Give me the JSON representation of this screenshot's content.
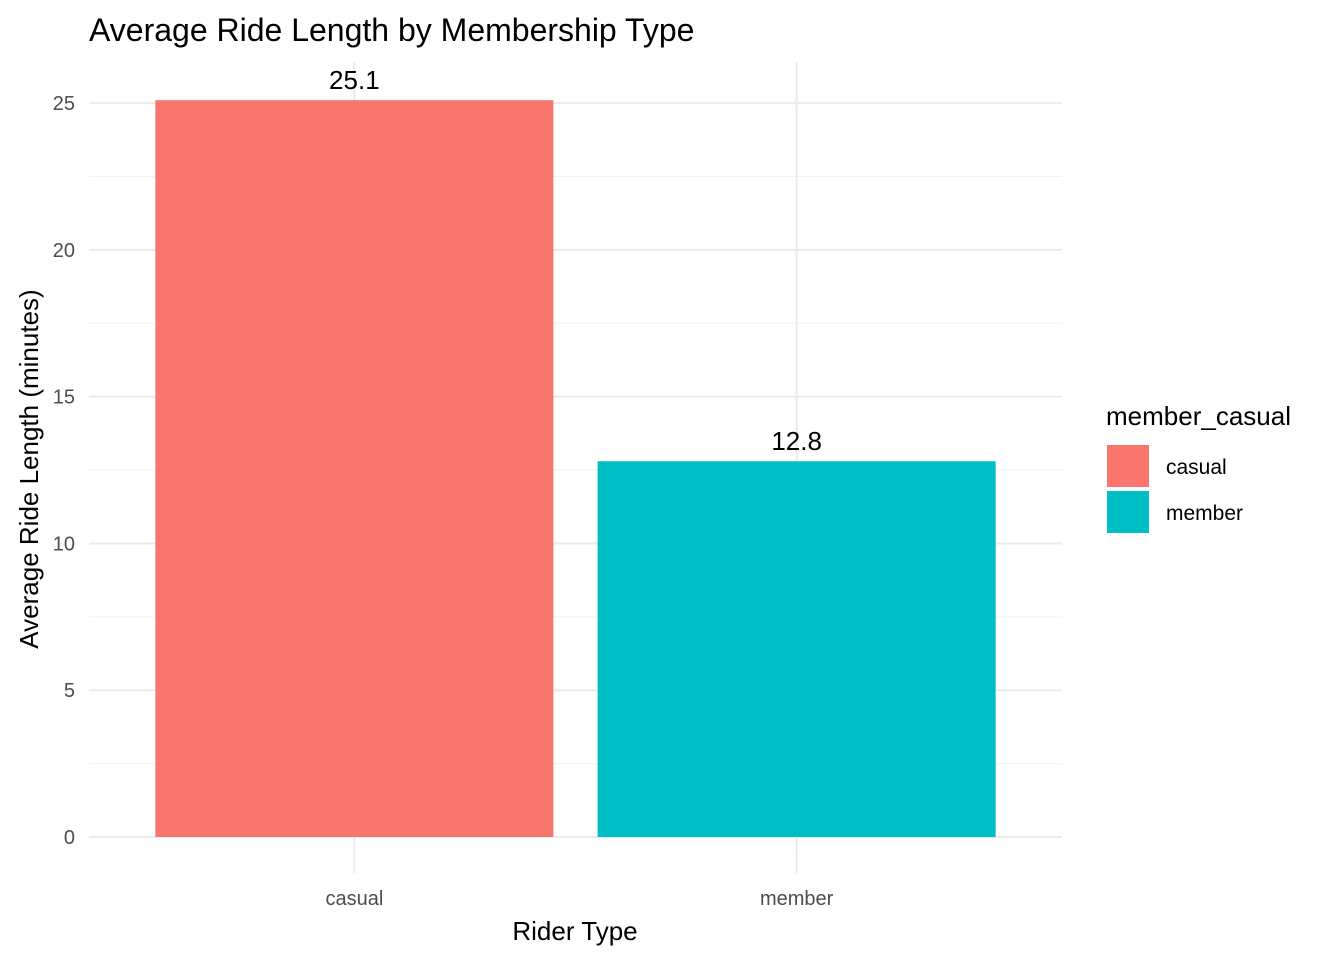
{
  "chart_data": {
    "type": "bar",
    "title": "Average Ride Length by Membership Type",
    "xlabel": "Rider Type",
    "ylabel": "Average Ride Length (minutes)",
    "categories": [
      "casual",
      "member"
    ],
    "values": [
      25.1,
      12.8
    ],
    "data_labels": [
      "25.1",
      "12.8"
    ],
    "colors": [
      "#F8766D",
      "#00BFC4"
    ],
    "ylim": [
      0,
      26.4
    ],
    "y_ticks": [
      0,
      5,
      10,
      15,
      20,
      25
    ],
    "y_tick_labels": [
      "0",
      "5",
      "10",
      "15",
      "20",
      "25"
    ],
    "grid": true,
    "legend": {
      "title": "member_casual",
      "placement": "right",
      "entries": [
        {
          "label": "casual",
          "color": "#F8766D"
        },
        {
          "label": "member",
          "color": "#00BFC4"
        }
      ]
    }
  }
}
